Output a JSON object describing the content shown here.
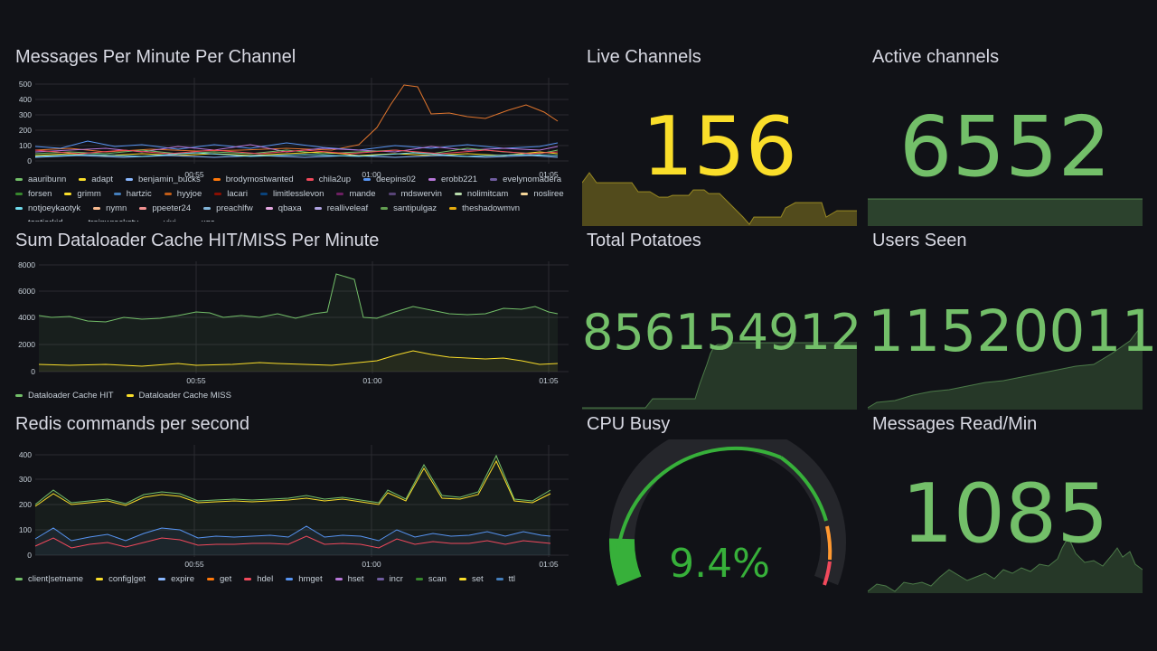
{
  "colors": {
    "background": "#111217",
    "green": "#73bf69",
    "yellow": "#fade2a",
    "gauge_green": "#37b03a",
    "gauge_orange": "#ff9830",
    "gauge_red": "#f2495c"
  },
  "panels": {
    "messages_per_minute": {
      "title": "Messages Per Minute Per Channel",
      "y_ticks": [
        "0",
        "100",
        "200",
        "300",
        "400",
        "500"
      ],
      "x_ticks": [
        "00:55",
        "01:00",
        "01:05"
      ],
      "legend": [
        {
          "name": "aauribunn",
          "color": "#73bf69"
        },
        {
          "name": "adapt",
          "color": "#fade2a"
        },
        {
          "name": "benjamin_bucks",
          "color": "#8ab8ff"
        },
        {
          "name": "brodymostwanted",
          "color": "#ff780a"
        },
        {
          "name": "chila2up",
          "color": "#f2495c"
        },
        {
          "name": "deepins02",
          "color": "#5794f2"
        },
        {
          "name": "erobb221",
          "color": "#b877d9"
        },
        {
          "name": "evelynomadera",
          "color": "#705da0"
        },
        {
          "name": "forsen",
          "color": "#37872d"
        },
        {
          "name": "grimm",
          "color": "#fade2a"
        },
        {
          "name": "hartzic",
          "color": "#447ebc"
        },
        {
          "name": "hyyjoe",
          "color": "#c15c17"
        },
        {
          "name": "lacari",
          "color": "#890f02"
        },
        {
          "name": "limitlesslevon",
          "color": "#0a437c"
        },
        {
          "name": "mande",
          "color": "#6d1f62"
        },
        {
          "name": "mdswervin",
          "color": "#584477"
        },
        {
          "name": "nolimitcam",
          "color": "#b7dbab"
        },
        {
          "name": "nosliree",
          "color": "#f4d598"
        },
        {
          "name": "notjoeykaotyk",
          "color": "#70dbed"
        },
        {
          "name": "nymn",
          "color": "#f9ba8f"
        },
        {
          "name": "ppeeter24",
          "color": "#f29191"
        },
        {
          "name": "preachlfw",
          "color": "#82b5d8"
        },
        {
          "name": "qbaxa",
          "color": "#e5a8e2"
        },
        {
          "name": "realliveleaf",
          "color": "#aea2e0"
        },
        {
          "name": "santipulgaz",
          "color": "#629e51"
        },
        {
          "name": "theshadowmvn",
          "color": "#e5ac0e"
        },
        {
          "name": "toptierkid",
          "color": "#64b0c8"
        },
        {
          "name": "trainwreckstv",
          "color": "#e0752d"
        },
        {
          "name": "vixi",
          "color": "#bf1b00"
        },
        {
          "name": "xqc",
          "color": "#0a50a1"
        }
      ]
    },
    "dataloader": {
      "title": "Sum Dataloader Cache HIT/MISS Per Minute",
      "y_ticks": [
        "0",
        "2000",
        "4000",
        "6000",
        "8000"
      ],
      "x_ticks": [
        "00:55",
        "01:00",
        "01:05"
      ],
      "legend": [
        {
          "name": "Dataloader Cache HIT",
          "color": "#73bf69"
        },
        {
          "name": "Dataloader Cache MISS",
          "color": "#fade2a"
        }
      ]
    },
    "redis": {
      "title": "Redis commands per second",
      "y_ticks": [
        "0",
        "100",
        "200",
        "300",
        "400"
      ],
      "x_ticks": [
        "00:55",
        "01:00",
        "01:05"
      ],
      "legend": [
        {
          "name": "client|setname",
          "color": "#73bf69"
        },
        {
          "name": "config|get",
          "color": "#fade2a"
        },
        {
          "name": "expire",
          "color": "#8ab8ff"
        },
        {
          "name": "get",
          "color": "#ff780a"
        },
        {
          "name": "hdel",
          "color": "#f2495c"
        },
        {
          "name": "hmget",
          "color": "#5794f2"
        },
        {
          "name": "hset",
          "color": "#b877d9"
        },
        {
          "name": "incr",
          "color": "#705da0"
        },
        {
          "name": "scan",
          "color": "#37872d"
        },
        {
          "name": "set",
          "color": "#fade2a"
        },
        {
          "name": "ttl",
          "color": "#447ebc"
        }
      ]
    },
    "live_channels": {
      "title": "Live Channels",
      "value": "156"
    },
    "active_channels": {
      "title": "Active channels",
      "value": "6552"
    },
    "total_potatoes": {
      "title": "Total Potatoes",
      "value": "856154912"
    },
    "users_seen": {
      "title": "Users Seen",
      "value": "11520011"
    },
    "cpu_busy": {
      "title": "CPU Busy",
      "value": "9.4%",
      "percent": 9.4
    },
    "messages_read": {
      "title": "Messages Read/Min",
      "value": "1085"
    }
  }
}
